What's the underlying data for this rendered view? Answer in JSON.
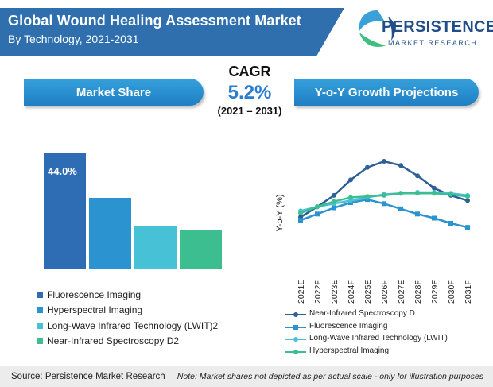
{
  "header": {
    "title": "Global Wound Healing Assessment Market",
    "subtitle": "By Technology, 2021-2031"
  },
  "logo": {
    "line1": "PERSISTENCE",
    "line2": "MARKET RESEARCH"
  },
  "panels": {
    "left_title": "Market Share",
    "right_title": "Y-o-Y Growth Projections"
  },
  "cagr": {
    "label": "CAGR",
    "value": "5.2%",
    "period": "(2021 – 2031)"
  },
  "footer": {
    "source": "Source: Persistence Market Research",
    "note": "Note: Market shares not depicted as per actual scale - only for illustration purposes"
  },
  "colors": {
    "banner": "#2f6fae",
    "accent": "#2b7ccf",
    "bar1": "#2e6db3",
    "bar2": "#2a93d0",
    "bar3": "#47c1d6",
    "bar4": "#3cbe90"
  },
  "chart_data": [
    {
      "type": "bar",
      "categories": [
        "Fluorescence Imaging",
        "Hyperspectral Imaging",
        "Long-Wave Infrared Technology (LWIT)2",
        "Near-Infrared Spectroscopy D2"
      ],
      "values": [
        44.0,
        27.0,
        16.0,
        15.0
      ],
      "data_labels": [
        "44.0%",
        "",
        "",
        ""
      ],
      "colors": [
        "#2e6db3",
        "#2a93d0",
        "#47c1d6",
        "#3cbe90"
      ],
      "ylim": [
        0,
        47
      ],
      "legend_position": "bottom"
    },
    {
      "type": "line",
      "x": [
        "2021E",
        "2022F",
        "2023E",
        "2024F",
        "2025E",
        "2026F",
        "2027E",
        "2028F",
        "2029E",
        "2030F",
        "2031F"
      ],
      "ylabel": "Y-o-Y (%)",
      "ylim": [
        0,
        10
      ],
      "series": [
        {
          "name": "Near-Infrared Spectroscopy D",
          "color": "#2e5f95",
          "values": [
            3.6,
            4.6,
            5.7,
            7.2,
            8.4,
            9.0,
            8.6,
            7.6,
            6.4,
            5.7,
            5.2
          ]
        },
        {
          "name": "Fluorescence Imaging",
          "color": "#2a93d0",
          "values": [
            3.3,
            3.9,
            4.5,
            5.0,
            5.3,
            4.9,
            4.4,
            3.9,
            3.5,
            3.0,
            2.6
          ]
        },
        {
          "name": "Long-Wave Infrared Technology (LWIT)",
          "color": "#47c1d6",
          "values": [
            4.2,
            4.6,
            4.9,
            5.2,
            5.5,
            5.8,
            5.9,
            6.0,
            6.0,
            5.9,
            5.7
          ]
        },
        {
          "name": "Hyperspectral Imaging",
          "color": "#3cbe90",
          "values": [
            4.0,
            4.6,
            5.1,
            5.5,
            5.6,
            5.7,
            5.9,
            5.9,
            5.9,
            5.8,
            5.6
          ]
        }
      ],
      "legend_position": "bottom"
    }
  ]
}
